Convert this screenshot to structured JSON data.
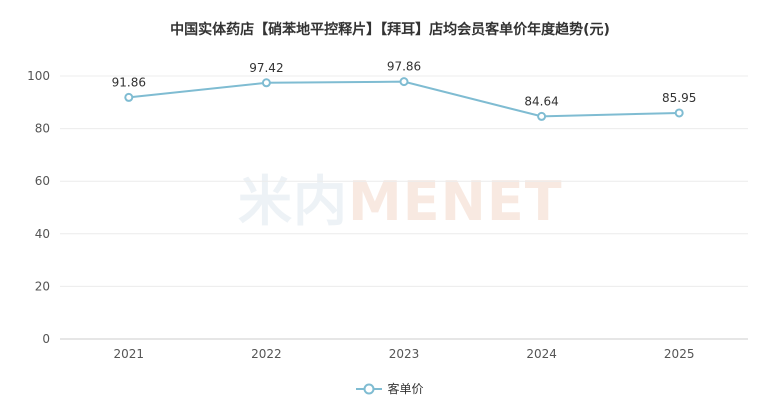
{
  "chart_data": {
    "type": "line",
    "title": "中国实体药店【硝苯地平控释片】【拜耳】店均会员客单价年度趋势(元)",
    "categories": [
      "2021",
      "2022",
      "2023",
      "2024",
      "2025"
    ],
    "series": [
      {
        "name": "客单价",
        "values": [
          91.86,
          97.42,
          97.86,
          84.64,
          85.95
        ],
        "data_labels": [
          "91.86",
          "97.42",
          "97.86",
          "84.64",
          "85.95"
        ],
        "color": "#7fbcd2"
      }
    ],
    "y_ticks": [
      "0",
      "20",
      "40",
      "60",
      "80",
      "100"
    ],
    "ylim": [
      0,
      100
    ],
    "grid": true,
    "legend_position": "bottom-center"
  },
  "watermark": {
    "left": "米内",
    "right": "MENET"
  }
}
